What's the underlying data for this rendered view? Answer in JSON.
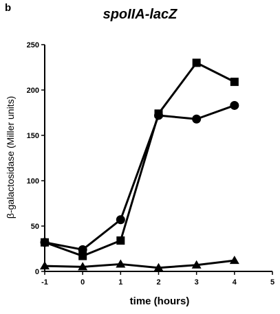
{
  "panel_label": "b",
  "chart_data": {
    "type": "line",
    "title": "spoIIA-lacZ",
    "xlabel": "time (hours)",
    "ylabel": "β-galactosidase (Miller units)",
    "xlim": [
      -1,
      5
    ],
    "ylim": [
      0,
      250
    ],
    "xticks": [
      -1,
      0,
      1,
      2,
      3,
      4,
      5
    ],
    "yticks": [
      0,
      50,
      100,
      150,
      200,
      250
    ],
    "grid": false,
    "legend": "none",
    "color": "#000000",
    "x": [
      -1,
      0,
      1,
      2,
      3,
      4
    ],
    "series": [
      {
        "marker": "square",
        "values": [
          32,
          17,
          34,
          174,
          230,
          209
        ]
      },
      {
        "marker": "circle",
        "values": [
          32,
          24,
          57,
          172,
          168,
          183
        ]
      },
      {
        "marker": "triangle",
        "values": [
          6,
          5,
          8,
          4,
          7,
          12
        ]
      }
    ]
  }
}
